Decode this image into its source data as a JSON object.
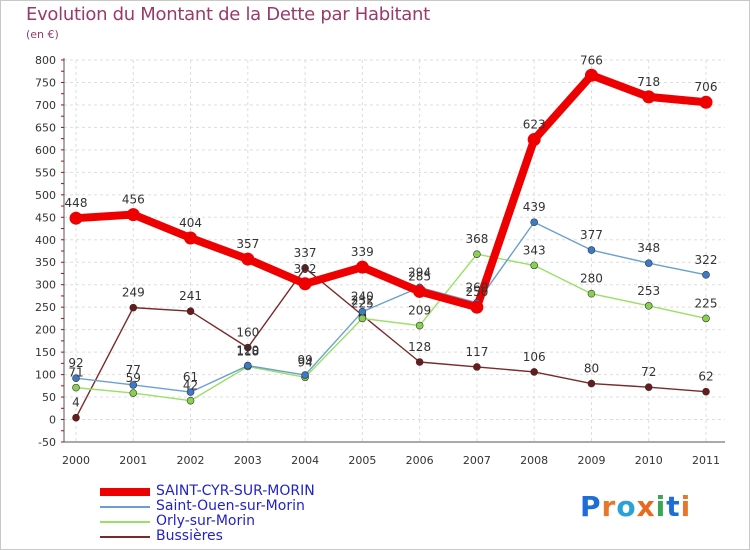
{
  "title": "Evolution du Montant de la Dette par Habitant",
  "subtitle": "(en €)",
  "logo": {
    "text": "Proxiti",
    "letter_colors": [
      "#1e6ed8",
      "#e8772e",
      "#2aa2d8",
      "#e86a1e",
      "#36a854",
      "#1e6ed8",
      "#e8772e"
    ]
  },
  "chart_data": {
    "type": "line",
    "categories": [
      "2000",
      "2001",
      "2002",
      "2003",
      "2004",
      "2005",
      "2006",
      "2007",
      "2008",
      "2009",
      "2010",
      "2011"
    ],
    "ylim": [
      -50,
      800
    ],
    "yticks": [
      "-50",
      "0",
      "50",
      "100",
      "150",
      "200",
      "250",
      "300",
      "350",
      "400",
      "450",
      "500",
      "550",
      "600",
      "650",
      "700",
      "750",
      "800"
    ],
    "grid": true,
    "series": [
      {
        "name": "SAINT-CYR-SUR-MORIN",
        "color": "#ee0000",
        "marker_color": "#ee0000",
        "values": [
          448,
          456,
          404,
          357,
          302,
          339,
          285,
          250,
          623,
          766,
          718,
          706
        ],
        "labels": [
          "448",
          "456",
          "404",
          "357",
          "302",
          "339",
          "285",
          "250",
          "623",
          "766",
          "718",
          "706"
        ],
        "thick": true
      },
      {
        "name": "Saint-Ouen-sur-Morin",
        "color": "#6aa0d0",
        "marker_color": "#3a7ac8",
        "values": [
          92,
          77,
          61,
          120,
          99,
          240,
          294,
          260,
          439,
          377,
          348,
          322
        ],
        "labels": [
          "92",
          "77",
          "61",
          "120",
          "99",
          "240",
          "294",
          "260",
          "439",
          "377",
          "348",
          "322"
        ],
        "thick": false
      },
      {
        "name": "Orly-sur-Morin",
        "color": "#99e066",
        "marker_color": "#88d050",
        "values": [
          71,
          59,
          42,
          118,
          94,
          225,
          209,
          368,
          343,
          280,
          253,
          225
        ],
        "labels": [
          "71",
          "59",
          "42",
          "118",
          "94",
          "225",
          "209",
          "368",
          "343",
          "280",
          "253",
          "225"
        ],
        "thick": false
      },
      {
        "name": "Bussières",
        "color": "#7a2a2a",
        "marker_color": "#6a1a1a",
        "values": [
          4,
          249,
          241,
          160,
          337,
          232,
          128,
          117,
          106,
          80,
          72,
          62
        ],
        "labels": [
          "4",
          "249",
          "241",
          "160",
          "337",
          "232",
          "128",
          "117",
          "106",
          "80",
          "72",
          "62"
        ],
        "thick": false
      }
    ]
  }
}
